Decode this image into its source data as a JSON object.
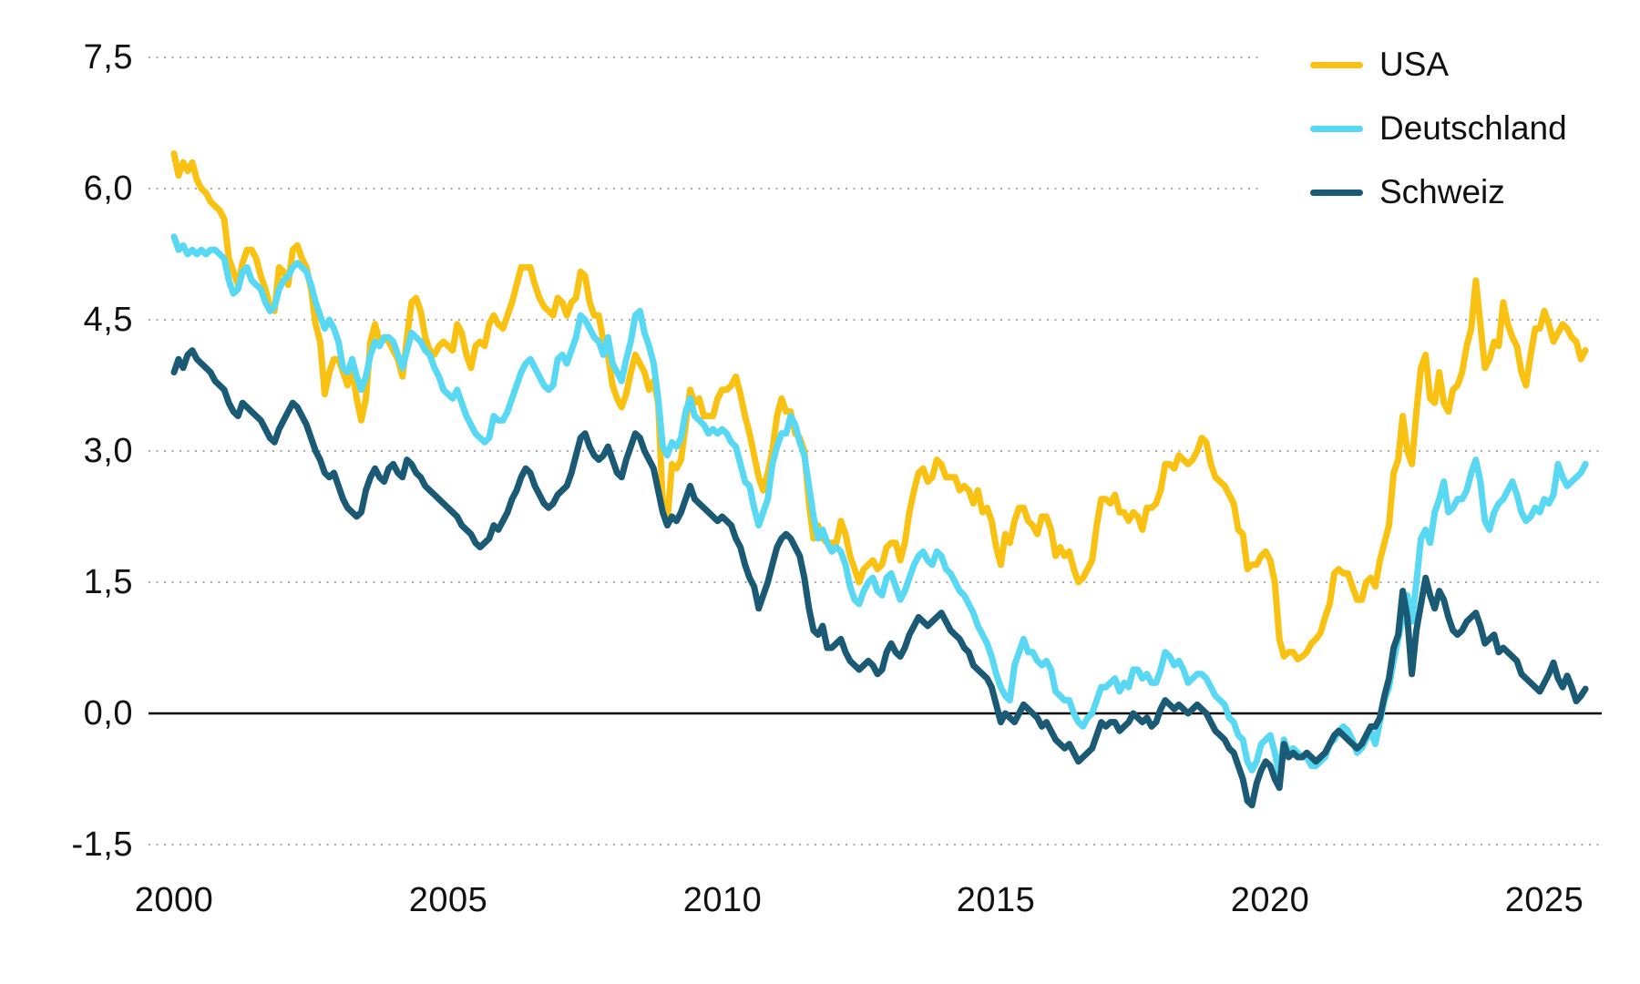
{
  "chart_data": {
    "type": "line",
    "title": "",
    "grid": "dotted horizontal",
    "legend_position": "top-right",
    "background_color": "#ffffff",
    "grid_color": "#a9a9a9",
    "zero_line_color": "#000000",
    "tick_text_color": "#111111",
    "x": {
      "start_year": 2000,
      "points_per_year": 12,
      "end": 2025.75,
      "tick_years": [
        2000,
        2005,
        2010,
        2015,
        2020,
        2025
      ],
      "tick_labels": [
        "2000",
        "2005",
        "2010",
        "2015",
        "2020",
        "2025"
      ]
    },
    "y": {
      "tick_values": [
        7.5,
        6.0,
        4.5,
        3.0,
        1.5,
        0.0,
        -1.5
      ],
      "tick_labels": [
        "7,5",
        "6,0",
        "4,5",
        "3,0",
        "1,5",
        "0,0",
        "-1,5"
      ],
      "ylim": [
        -2.0,
        8.0
      ],
      "zero_line": true
    },
    "series": [
      {
        "name": "USA",
        "color": "#F9C213",
        "values": [
          6.4,
          6.15,
          6.3,
          6.2,
          6.3,
          6.1,
          6.0,
          5.95,
          5.85,
          5.8,
          5.75,
          5.65,
          5.2,
          5.05,
          4.9,
          5.15,
          5.3,
          5.3,
          5.2,
          5.0,
          4.85,
          4.65,
          4.6,
          5.1,
          5.05,
          4.9,
          5.3,
          5.35,
          5.2,
          5.1,
          4.85,
          4.45,
          4.25,
          3.65,
          3.9,
          4.05,
          4.05,
          3.9,
          3.75,
          3.95,
          3.6,
          3.35,
          3.6,
          4.25,
          4.45,
          4.25,
          4.3,
          4.25,
          4.15,
          4.05,
          3.85,
          4.3,
          4.7,
          4.75,
          4.6,
          4.3,
          4.15,
          4.1,
          4.2,
          4.25,
          4.2,
          4.15,
          4.45,
          4.35,
          4.1,
          3.95,
          4.2,
          4.25,
          4.2,
          4.45,
          4.55,
          4.45,
          4.4,
          4.55,
          4.7,
          4.9,
          5.1,
          5.1,
          5.1,
          4.9,
          4.75,
          4.65,
          4.6,
          4.55,
          4.75,
          4.7,
          4.55,
          4.7,
          4.75,
          5.05,
          5.0,
          4.7,
          4.55,
          4.55,
          4.25,
          4.1,
          3.75,
          3.6,
          3.5,
          3.65,
          3.9,
          4.1,
          4.0,
          3.9,
          3.7,
          3.8,
          3.55,
          2.4,
          2.2,
          2.85,
          2.8,
          2.9,
          3.3,
          3.7,
          3.55,
          3.6,
          3.4,
          3.4,
          3.4,
          3.6,
          3.7,
          3.7,
          3.75,
          3.85,
          3.65,
          3.4,
          3.2,
          2.95,
          2.7,
          2.55,
          2.75,
          3.0,
          3.4,
          3.6,
          3.45,
          3.45,
          3.2,
          3.15,
          3.0,
          2.4,
          2.0,
          2.15,
          2.0,
          1.95,
          1.95,
          1.95,
          2.2,
          2.05,
          1.8,
          1.65,
          1.5,
          1.65,
          1.7,
          1.75,
          1.65,
          1.7,
          1.9,
          1.95,
          1.95,
          1.75,
          1.95,
          2.3,
          2.55,
          2.75,
          2.8,
          2.65,
          2.7,
          2.9,
          2.85,
          2.7,
          2.7,
          2.7,
          2.55,
          2.6,
          2.55,
          2.4,
          2.55,
          2.3,
          2.35,
          2.2,
          1.9,
          1.7,
          2.05,
          1.95,
          2.2,
          2.35,
          2.35,
          2.2,
          2.15,
          2.05,
          2.25,
          2.25,
          2.1,
          1.8,
          1.9,
          1.8,
          1.85,
          1.65,
          1.5,
          1.55,
          1.65,
          1.75,
          2.15,
          2.45,
          2.45,
          2.4,
          2.5,
          2.3,
          2.3,
          2.2,
          2.3,
          2.25,
          2.1,
          2.35,
          2.35,
          2.4,
          2.55,
          2.85,
          2.85,
          2.8,
          2.95,
          2.9,
          2.85,
          2.9,
          3.0,
          3.15,
          3.1,
          2.85,
          2.7,
          2.65,
          2.6,
          2.5,
          2.4,
          2.1,
          2.05,
          1.65,
          1.7,
          1.7,
          1.8,
          1.85,
          1.75,
          1.5,
          0.85,
          0.65,
          0.7,
          0.7,
          0.62,
          0.65,
          0.7,
          0.8,
          0.85,
          0.92,
          1.1,
          1.25,
          1.6,
          1.65,
          1.6,
          1.6,
          1.45,
          1.3,
          1.3,
          1.5,
          1.55,
          1.45,
          1.75,
          1.95,
          2.15,
          2.75,
          2.9,
          3.4,
          3.0,
          2.85,
          3.45,
          3.95,
          4.1,
          3.6,
          3.55,
          3.9,
          3.55,
          3.45,
          3.7,
          3.75,
          3.9,
          4.2,
          4.4,
          4.95,
          4.45,
          3.95,
          4.05,
          4.25,
          4.2,
          4.7,
          4.45,
          4.3,
          4.2,
          3.9,
          3.75,
          4.1,
          4.4,
          4.4,
          4.6,
          4.45,
          4.25,
          4.35,
          4.45,
          4.4,
          4.3,
          4.25,
          4.05,
          4.15
        ]
      },
      {
        "name": "Deutschland",
        "color": "#58D8F2",
        "values": [
          5.45,
          5.3,
          5.35,
          5.25,
          5.3,
          5.25,
          5.3,
          5.25,
          5.3,
          5.3,
          5.25,
          5.2,
          4.95,
          4.8,
          4.85,
          5.05,
          5.1,
          4.95,
          4.9,
          4.85,
          4.7,
          4.6,
          4.65,
          4.85,
          4.95,
          5.0,
          5.1,
          5.15,
          5.1,
          5.05,
          4.9,
          4.7,
          4.55,
          4.4,
          4.5,
          4.4,
          4.25,
          3.95,
          3.9,
          4.05,
          3.85,
          3.7,
          3.85,
          4.1,
          4.25,
          4.2,
          4.3,
          4.3,
          4.25,
          4.1,
          3.95,
          4.15,
          4.35,
          4.3,
          4.25,
          4.15,
          4.1,
          3.95,
          3.85,
          3.7,
          3.65,
          3.6,
          3.7,
          3.55,
          3.4,
          3.3,
          3.2,
          3.15,
          3.1,
          3.15,
          3.4,
          3.35,
          3.35,
          3.45,
          3.6,
          3.75,
          3.9,
          4.0,
          4.05,
          3.95,
          3.85,
          3.75,
          3.7,
          3.75,
          4.05,
          4.1,
          4.0,
          4.15,
          4.3,
          4.55,
          4.5,
          4.4,
          4.3,
          4.25,
          4.1,
          4.3,
          4.0,
          3.9,
          3.8,
          4.05,
          4.25,
          4.55,
          4.6,
          4.35,
          4.2,
          4.0,
          3.6,
          3.05,
          2.95,
          3.1,
          3.05,
          3.15,
          3.45,
          3.6,
          3.4,
          3.35,
          3.3,
          3.2,
          3.25,
          3.2,
          3.25,
          3.2,
          3.1,
          3.05,
          2.85,
          2.65,
          2.6,
          2.35,
          2.15,
          2.3,
          2.45,
          2.85,
          3.05,
          3.2,
          3.2,
          3.4,
          3.3,
          3.1,
          2.95,
          2.6,
          2.25,
          2.0,
          2.1,
          1.95,
          1.85,
          1.9,
          1.85,
          1.7,
          1.45,
          1.3,
          1.25,
          1.4,
          1.5,
          1.55,
          1.4,
          1.35,
          1.55,
          1.6,
          1.45,
          1.3,
          1.4,
          1.55,
          1.7,
          1.8,
          1.85,
          1.75,
          1.7,
          1.85,
          1.8,
          1.65,
          1.6,
          1.5,
          1.4,
          1.35,
          1.25,
          1.15,
          1.0,
          0.9,
          0.8,
          0.65,
          0.45,
          0.3,
          0.2,
          0.15,
          0.55,
          0.7,
          0.85,
          0.7,
          0.7,
          0.6,
          0.55,
          0.6,
          0.5,
          0.25,
          0.2,
          0.15,
          0.15,
          0.0,
          -0.1,
          -0.15,
          -0.05,
          0.0,
          0.15,
          0.3,
          0.3,
          0.35,
          0.4,
          0.25,
          0.35,
          0.3,
          0.5,
          0.5,
          0.4,
          0.45,
          0.35,
          0.35,
          0.5,
          0.7,
          0.65,
          0.55,
          0.6,
          0.5,
          0.35,
          0.4,
          0.45,
          0.45,
          0.4,
          0.3,
          0.2,
          0.15,
          0.1,
          -0.05,
          -0.1,
          -0.25,
          -0.3,
          -0.55,
          -0.65,
          -0.55,
          -0.35,
          -0.3,
          -0.25,
          -0.45,
          -0.7,
          -0.3,
          -0.45,
          -0.4,
          -0.45,
          -0.5,
          -0.5,
          -0.6,
          -0.6,
          -0.55,
          -0.5,
          -0.35,
          -0.3,
          -0.2,
          -0.15,
          -0.2,
          -0.3,
          -0.45,
          -0.4,
          -0.3,
          -0.2,
          -0.35,
          -0.1,
          0.15,
          0.3,
          0.6,
          0.85,
          1.1,
          1.35,
          1.05,
          1.5,
          2.0,
          2.1,
          1.95,
          2.3,
          2.45,
          2.65,
          2.3,
          2.35,
          2.45,
          2.45,
          2.55,
          2.75,
          2.9,
          2.65,
          2.2,
          2.1,
          2.3,
          2.4,
          2.45,
          2.55,
          2.65,
          2.5,
          2.3,
          2.2,
          2.25,
          2.35,
          2.3,
          2.45,
          2.4,
          2.5,
          2.85,
          2.7,
          2.6,
          2.65,
          2.7,
          2.75,
          2.85
        ]
      },
      {
        "name": "Schweiz",
        "color": "#1B5A75",
        "values": [
          3.9,
          4.05,
          3.95,
          4.1,
          4.15,
          4.05,
          4.0,
          3.95,
          3.9,
          3.8,
          3.75,
          3.7,
          3.55,
          3.45,
          3.4,
          3.55,
          3.5,
          3.45,
          3.4,
          3.35,
          3.25,
          3.15,
          3.1,
          3.25,
          3.35,
          3.45,
          3.55,
          3.5,
          3.4,
          3.3,
          3.15,
          3.0,
          2.9,
          2.75,
          2.7,
          2.75,
          2.6,
          2.45,
          2.35,
          2.3,
          2.25,
          2.3,
          2.55,
          2.7,
          2.8,
          2.7,
          2.65,
          2.8,
          2.85,
          2.75,
          2.7,
          2.9,
          2.85,
          2.75,
          2.7,
          2.6,
          2.55,
          2.5,
          2.45,
          2.4,
          2.35,
          2.3,
          2.25,
          2.15,
          2.1,
          2.05,
          1.95,
          1.9,
          1.95,
          2.0,
          2.15,
          2.1,
          2.2,
          2.3,
          2.45,
          2.55,
          2.7,
          2.8,
          2.75,
          2.6,
          2.5,
          2.4,
          2.35,
          2.4,
          2.5,
          2.55,
          2.6,
          2.75,
          2.95,
          3.15,
          3.2,
          3.05,
          2.95,
          2.9,
          2.95,
          3.05,
          2.9,
          2.75,
          2.7,
          2.9,
          3.05,
          3.2,
          3.15,
          3.0,
          2.9,
          2.8,
          2.55,
          2.3,
          2.15,
          2.25,
          2.2,
          2.3,
          2.45,
          2.6,
          2.45,
          2.4,
          2.35,
          2.3,
          2.25,
          2.2,
          2.25,
          2.2,
          2.15,
          2.0,
          1.9,
          1.7,
          1.55,
          1.45,
          1.2,
          1.35,
          1.5,
          1.7,
          1.9,
          2.0,
          2.05,
          2.0,
          1.9,
          1.8,
          1.55,
          1.2,
          0.95,
          0.9,
          1.0,
          0.75,
          0.75,
          0.8,
          0.85,
          0.7,
          0.6,
          0.55,
          0.5,
          0.55,
          0.6,
          0.55,
          0.45,
          0.5,
          0.7,
          0.8,
          0.7,
          0.65,
          0.75,
          0.9,
          1.0,
          1.1,
          1.05,
          1.0,
          1.05,
          1.1,
          1.15,
          1.05,
          0.95,
          0.9,
          0.85,
          0.75,
          0.7,
          0.55,
          0.5,
          0.45,
          0.4,
          0.3,
          0.1,
          -0.1,
          0.0,
          -0.05,
          -0.1,
          0.0,
          0.1,
          0.05,
          0.0,
          -0.05,
          -0.15,
          -0.1,
          -0.2,
          -0.3,
          -0.35,
          -0.4,
          -0.35,
          -0.45,
          -0.55,
          -0.5,
          -0.45,
          -0.4,
          -0.25,
          -0.1,
          -0.15,
          -0.1,
          -0.1,
          -0.2,
          -0.15,
          -0.1,
          0.0,
          -0.05,
          -0.1,
          -0.05,
          -0.15,
          -0.1,
          0.05,
          0.15,
          0.1,
          0.05,
          0.1,
          0.05,
          0.0,
          0.05,
          0.1,
          0.05,
          0.0,
          -0.1,
          -0.2,
          -0.25,
          -0.3,
          -0.4,
          -0.45,
          -0.6,
          -0.75,
          -1.0,
          -1.05,
          -0.8,
          -0.65,
          -0.55,
          -0.6,
          -0.75,
          -0.85,
          -0.35,
          -0.5,
          -0.45,
          -0.5,
          -0.5,
          -0.45,
          -0.5,
          -0.55,
          -0.5,
          -0.45,
          -0.35,
          -0.25,
          -0.2,
          -0.25,
          -0.3,
          -0.35,
          -0.4,
          -0.35,
          -0.25,
          -0.15,
          -0.15,
          -0.05,
          0.2,
          0.4,
          0.75,
          0.9,
          1.4,
          1.1,
          0.45,
          0.95,
          1.25,
          1.55,
          1.35,
          1.2,
          1.4,
          1.3,
          1.1,
          0.95,
          0.9,
          0.95,
          1.05,
          1.1,
          1.15,
          1.0,
          0.8,
          0.85,
          0.9,
          0.7,
          0.75,
          0.7,
          0.65,
          0.6,
          0.45,
          0.4,
          0.35,
          0.3,
          0.25,
          0.35,
          0.45,
          0.58,
          0.4,
          0.3,
          0.43,
          0.3,
          0.14,
          0.2,
          0.28
        ]
      }
    ]
  },
  "legend": {
    "items": [
      {
        "label": "USA"
      },
      {
        "label": "Deutschland"
      },
      {
        "label": "Schweiz"
      }
    ]
  }
}
